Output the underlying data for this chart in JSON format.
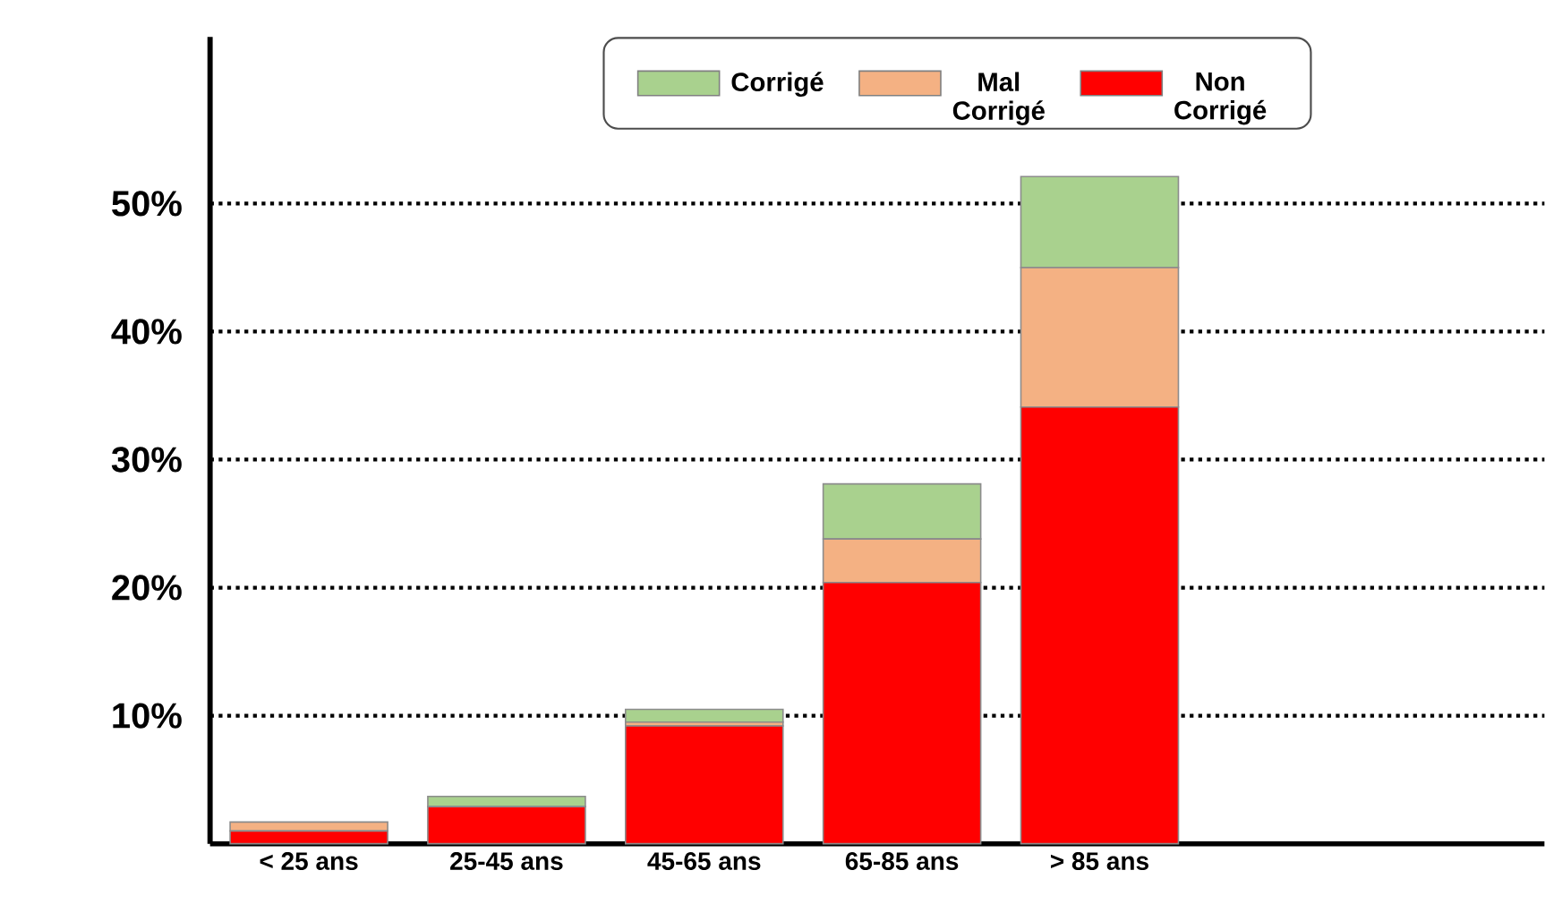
{
  "chart_data": {
    "type": "bar",
    "stacked": true,
    "categories": [
      "< 25 ans",
      "25-45 ans",
      "45-65 ans",
      "65-85 ans",
      "> 85 ans"
    ],
    "series": [
      {
        "name": "Non Corrigé",
        "color": "#ff0000",
        "values": [
          1.0,
          2.9,
          9.2,
          20.4,
          34.1
        ]
      },
      {
        "name": "Mal Corrigé",
        "color": "#f4b183",
        "values": [
          0.7,
          0,
          0.3,
          3.4,
          10.9
        ]
      },
      {
        "name": "Corrigé",
        "color": "#a9d18e",
        "values": [
          0,
          0.8,
          1.0,
          4.3,
          7.1
        ]
      }
    ],
    "ylim": [
      0,
      63
    ],
    "yticks": [
      {
        "value": 10,
        "label": "10%"
      },
      {
        "value": 20,
        "label": "20%"
      },
      {
        "value": 30,
        "label": "30%"
      },
      {
        "value": 40,
        "label": "40%"
      },
      {
        "value": 50,
        "label": "50%"
      }
    ],
    "grid": "y",
    "legend": "top"
  }
}
